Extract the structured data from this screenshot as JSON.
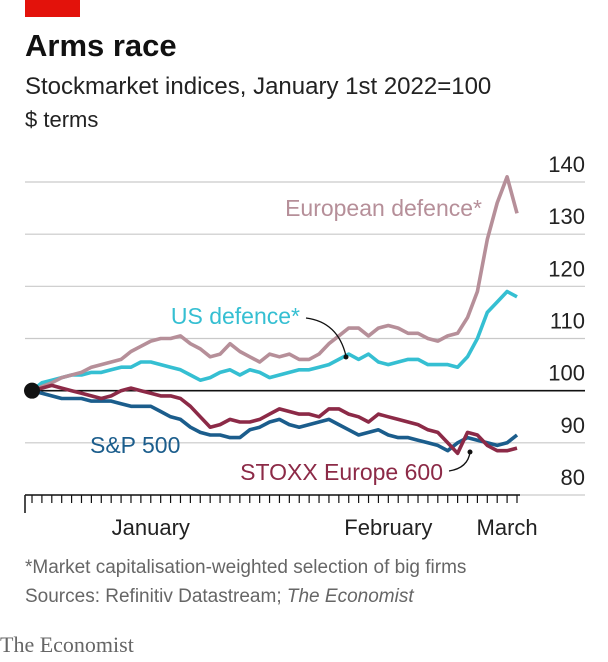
{
  "chart_data": {
    "type": "line",
    "title": "Arms race",
    "subtitle": "Stockmarket indices, January 1st 2022=100",
    "unit": "$ terms",
    "footnote": "*Market capitalisation-weighted selection of big firms",
    "source": {
      "text": "Sources: Refinitiv Datastream;",
      "italic": "The Economist"
    },
    "brand": "The Economist",
    "categories": [
      null,
      null,
      null,
      null,
      null,
      null,
      null,
      null,
      null,
      null,
      null,
      null,
      "January",
      null,
      null,
      null,
      null,
      null,
      null,
      null,
      null,
      null,
      null,
      null,
      null,
      null,
      null,
      null,
      null,
      null,
      null,
      null,
      null,
      null,
      null,
      null,
      "February",
      null,
      null,
      null,
      null,
      null,
      null,
      null,
      null,
      null,
      null,
      null,
      "March",
      null
    ],
    "ylim": [
      80,
      140
    ],
    "yticks": [
      80,
      90,
      100,
      110,
      120,
      130,
      140
    ],
    "baseline": 100,
    "grid": true,
    "series": [
      {
        "name": "European defence*",
        "color": "#b68f99",
        "values": [
          100,
          100.8,
          101.5,
          102.5,
          103,
          103.5,
          104.5,
          105,
          105.5,
          106,
          107.5,
          108.5,
          109.5,
          110,
          110,
          110.5,
          109,
          108,
          106.5,
          107,
          109,
          107.5,
          106.5,
          105.5,
          107,
          106.5,
          107,
          106,
          106,
          107,
          109,
          110.5,
          112,
          112,
          110.5,
          112,
          112.5,
          112,
          111,
          111,
          110,
          109.5,
          110.5,
          111,
          114,
          119,
          129,
          136,
          141,
          134
        ]
      },
      {
        "name": "US defence*",
        "color": "#35bfd2",
        "values": [
          100,
          101.5,
          102,
          102.5,
          103,
          103,
          103.5,
          103.5,
          104,
          104.5,
          104.5,
          105.5,
          105.5,
          105,
          104.5,
          104,
          103,
          102,
          102.5,
          103.5,
          104,
          103,
          104,
          103.5,
          102.5,
          103,
          103.5,
          104,
          104,
          104.5,
          105,
          106,
          107,
          106,
          107,
          105.5,
          105,
          105.5,
          106,
          106,
          105,
          105,
          105,
          104.5,
          106.5,
          110,
          115,
          117,
          119,
          118
        ]
      },
      {
        "name": "S&P 500",
        "color": "#1b5d8c",
        "values": [
          100,
          99.5,
          99,
          98.5,
          98.5,
          98.5,
          98,
          98,
          98,
          97.5,
          97,
          97,
          97,
          96,
          95,
          94.5,
          93,
          92,
          91.5,
          91.5,
          91,
          91,
          92.5,
          93,
          94,
          94.5,
          93.5,
          93,
          93.5,
          94,
          94.5,
          93.5,
          92.5,
          91.5,
          92,
          92.5,
          91.5,
          91,
          91,
          90.5,
          90,
          89.5,
          88.5,
          90,
          91,
          90.5,
          90,
          89.5,
          90,
          91.5
        ]
      },
      {
        "name": "STOXX Europe 600",
        "color": "#8c2a47",
        "values": [
          100,
          100.5,
          101,
          100.5,
          100,
          99.5,
          99,
          98.5,
          99,
          100,
          100.5,
          100,
          99.5,
          99,
          99,
          98.5,
          97,
          95,
          93,
          93.5,
          94.5,
          94,
          94,
          94.5,
          95.5,
          96.5,
          96,
          95.5,
          95.5,
          95,
          96.5,
          96.5,
          95.5,
          95,
          94,
          95.5,
          95,
          94.5,
          94,
          93.5,
          92.5,
          92,
          90,
          88,
          92,
          91.5,
          89.5,
          88.5,
          88.5,
          89
        ]
      }
    ]
  }
}
